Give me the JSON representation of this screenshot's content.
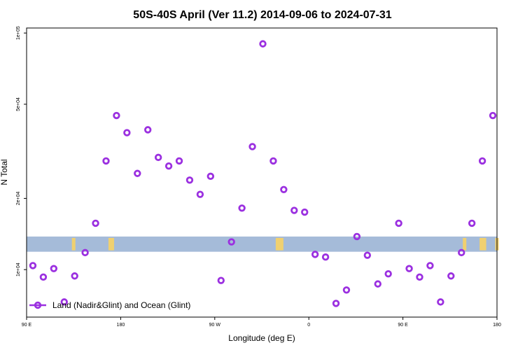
{
  "chart_data": {
    "type": "scatter",
    "title": "50S-40S April (Ver 11.2)   2014-09-06 to 2024-07-31",
    "xlabel": "Longitude (deg E)",
    "ylabel": "N Total",
    "x_ticks": [
      {
        "value": 90,
        "label": "90 E"
      },
      {
        "value": 180,
        "label": "180"
      },
      {
        "value": 270,
        "label": "90 W"
      },
      {
        "value": 360,
        "label": "0"
      },
      {
        "value": 450,
        "label": "90 E"
      },
      {
        "value": 540,
        "label": "180"
      }
    ],
    "y_ticks": [
      {
        "value": 10000,
        "label": "1e+04"
      },
      {
        "value": 20000,
        "label": "2e+04"
      },
      {
        "value": 50000,
        "label": "5e+04"
      },
      {
        "value": 100000,
        "label": "1e+05"
      }
    ],
    "xlim": [
      90,
      540
    ],
    "ylim": [
      6300,
      105000
    ],
    "y_scale": "log",
    "grid": false,
    "legend": {
      "position": "bottom-left",
      "entries": [
        {
          "label": "Land (Nadir&Glint) and Ocean (Glint)",
          "color": "#9b30e0"
        }
      ]
    },
    "band_color": "#a5bbd9",
    "land_color": "#f0d070",
    "latitude_band": {
      "ylow": 11900,
      "yhigh": 13800
    },
    "land_marks": [
      135,
      170,
      172,
      330,
      332,
      334,
      509,
      525,
      528,
      540
    ],
    "series": [
      {
        "color": "#9b30e0",
        "x": [
          96,
          106,
          116,
          126,
          136,
          146,
          156,
          166,
          176,
          186,
          196,
          206,
          216,
          226,
          236,
          246,
          256,
          266,
          276,
          286,
          296,
          306,
          316,
          326,
          336,
          346,
          356,
          366,
          376,
          386,
          396,
          406,
          416,
          426,
          436,
          446,
          456,
          466,
          476,
          486,
          496,
          506,
          516,
          526,
          536
        ],
        "y": [
          10400,
          9300,
          10100,
          7300,
          9400,
          11800,
          15700,
          28800,
          44800,
          37900,
          25500,
          39000,
          29800,
          27400,
          28800,
          23900,
          20800,
          24800,
          9000,
          13100,
          18200,
          33100,
          90000,
          28800,
          21800,
          17800,
          17500,
          11600,
          11300,
          7200,
          8200,
          13800,
          11500,
          8700,
          9600,
          15700,
          10100,
          9300,
          10400,
          7300,
          9400,
          11800,
          15700,
          28800,
          44800
        ]
      }
    ]
  }
}
